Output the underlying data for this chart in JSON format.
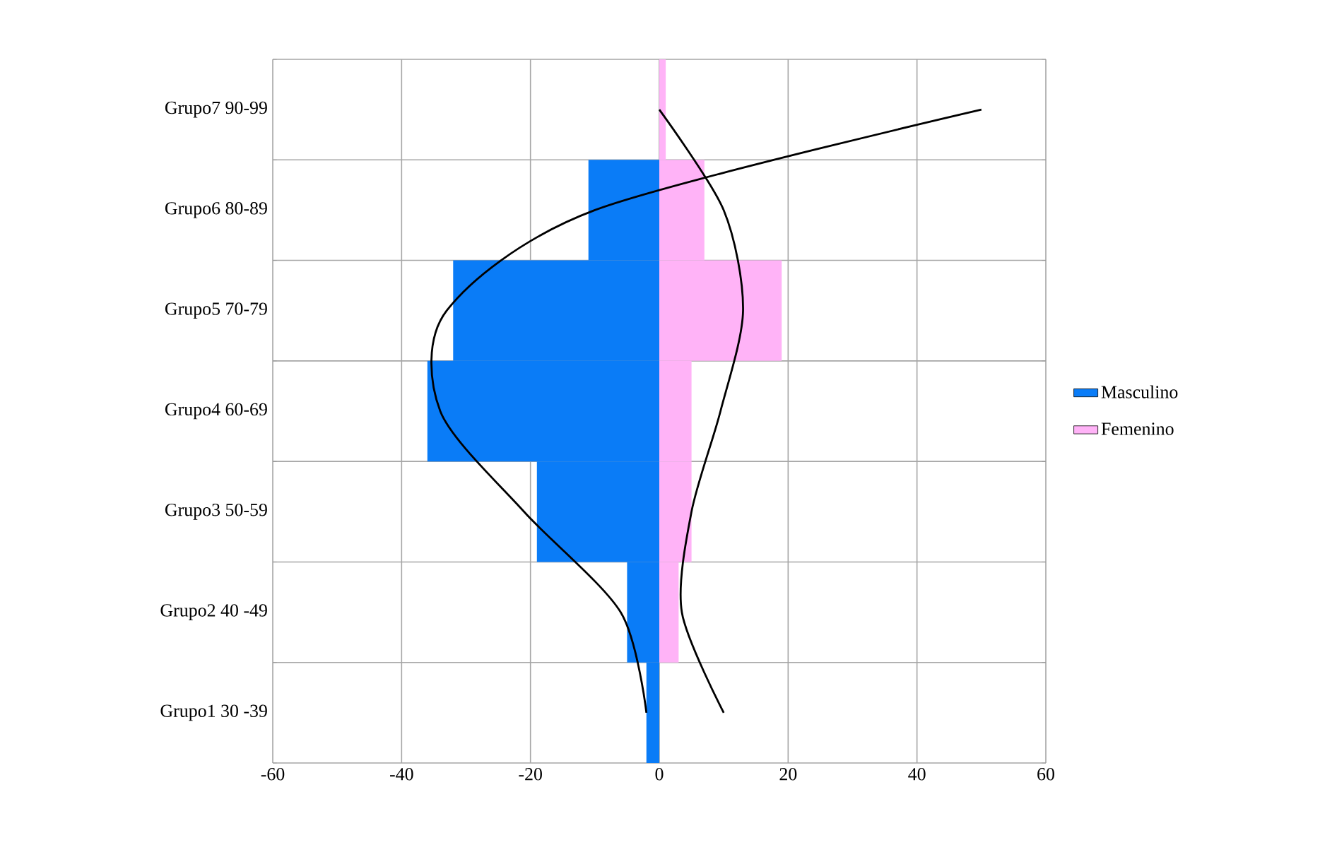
{
  "chart_data": {
    "type": "bar",
    "orientation": "horizontal",
    "stacked": true,
    "categories": [
      "Grupo7  90-99",
      "Grupo6  80-89",
      "Grupo5 70-79",
      "Grupo4 60-69",
      "Grupo3 50-59",
      "Grupo2 40 -49",
      "Grupo1 30 -39"
    ],
    "series": [
      {
        "name": "Masculino",
        "color": "#0a7cf7",
        "values": [
          0,
          -11,
          -32,
          -36,
          -19,
          -5,
          -2
        ]
      },
      {
        "name": "Femenino",
        "color": "#ffb3f7",
        "values": [
          1,
          7,
          19,
          5,
          5,
          3,
          0
        ]
      },
      {
        "type": "line",
        "color": "#000000",
        "values": [
          50,
          -10,
          -33,
          -34,
          -21,
          -6,
          -2
        ]
      },
      {
        "type": "line",
        "color": "#000000",
        "values": [
          0,
          10,
          13,
          9.5,
          5,
          3.5,
          10
        ]
      }
    ],
    "xlim": [
      -60,
      60
    ],
    "xticks": [
      -60,
      -40,
      -20,
      0,
      20,
      40,
      60
    ],
    "grid": true,
    "legend": "right"
  }
}
